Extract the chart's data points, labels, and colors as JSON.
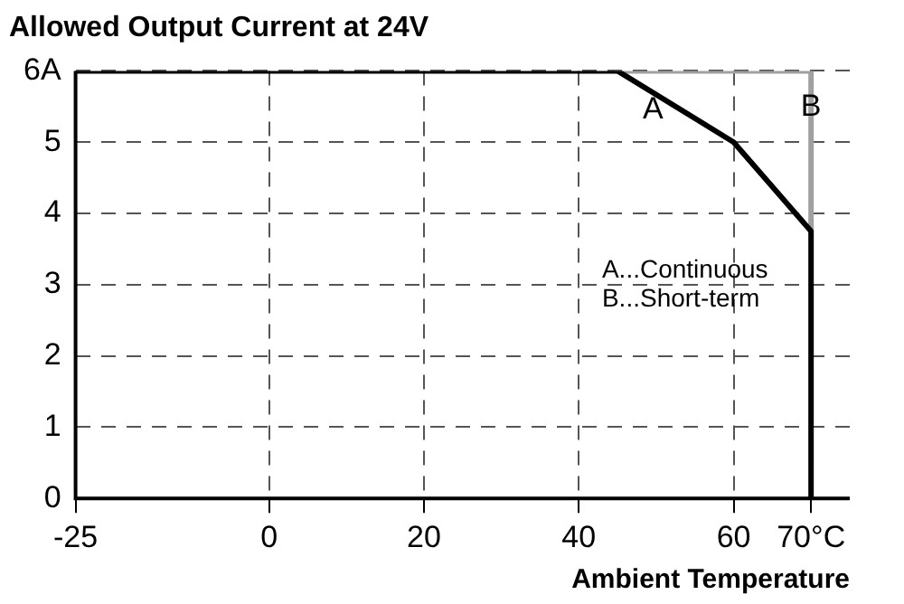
{
  "chart_data": {
    "type": "line",
    "title": "Allowed Output Current at 24V",
    "xlabel": "Ambient Temperature",
    "series": [
      {
        "name": "B",
        "color": "#a0a0a0",
        "x": [
          45,
          70,
          70
        ],
        "values": [
          6,
          6,
          3.75
        ]
      },
      {
        "name": "A",
        "color": "#000000",
        "x": [
          -25,
          45,
          60,
          70,
          70
        ],
        "values": [
          6,
          6,
          5,
          3.75,
          0
        ]
      }
    ],
    "xlim": [
      -25,
      75
    ],
    "xticks": [
      -25,
      0,
      20,
      40,
      60,
      {
        "value": 70,
        "label": "70°C"
      }
    ],
    "ylim": [
      0,
      6
    ],
    "yticks": [
      0,
      1,
      2,
      3,
      4,
      5,
      {
        "value": 6,
        "label": "6A"
      }
    ],
    "grid": true,
    "legend": false,
    "annotations": [
      "A...Continuous",
      "B...Short-term"
    ]
  }
}
